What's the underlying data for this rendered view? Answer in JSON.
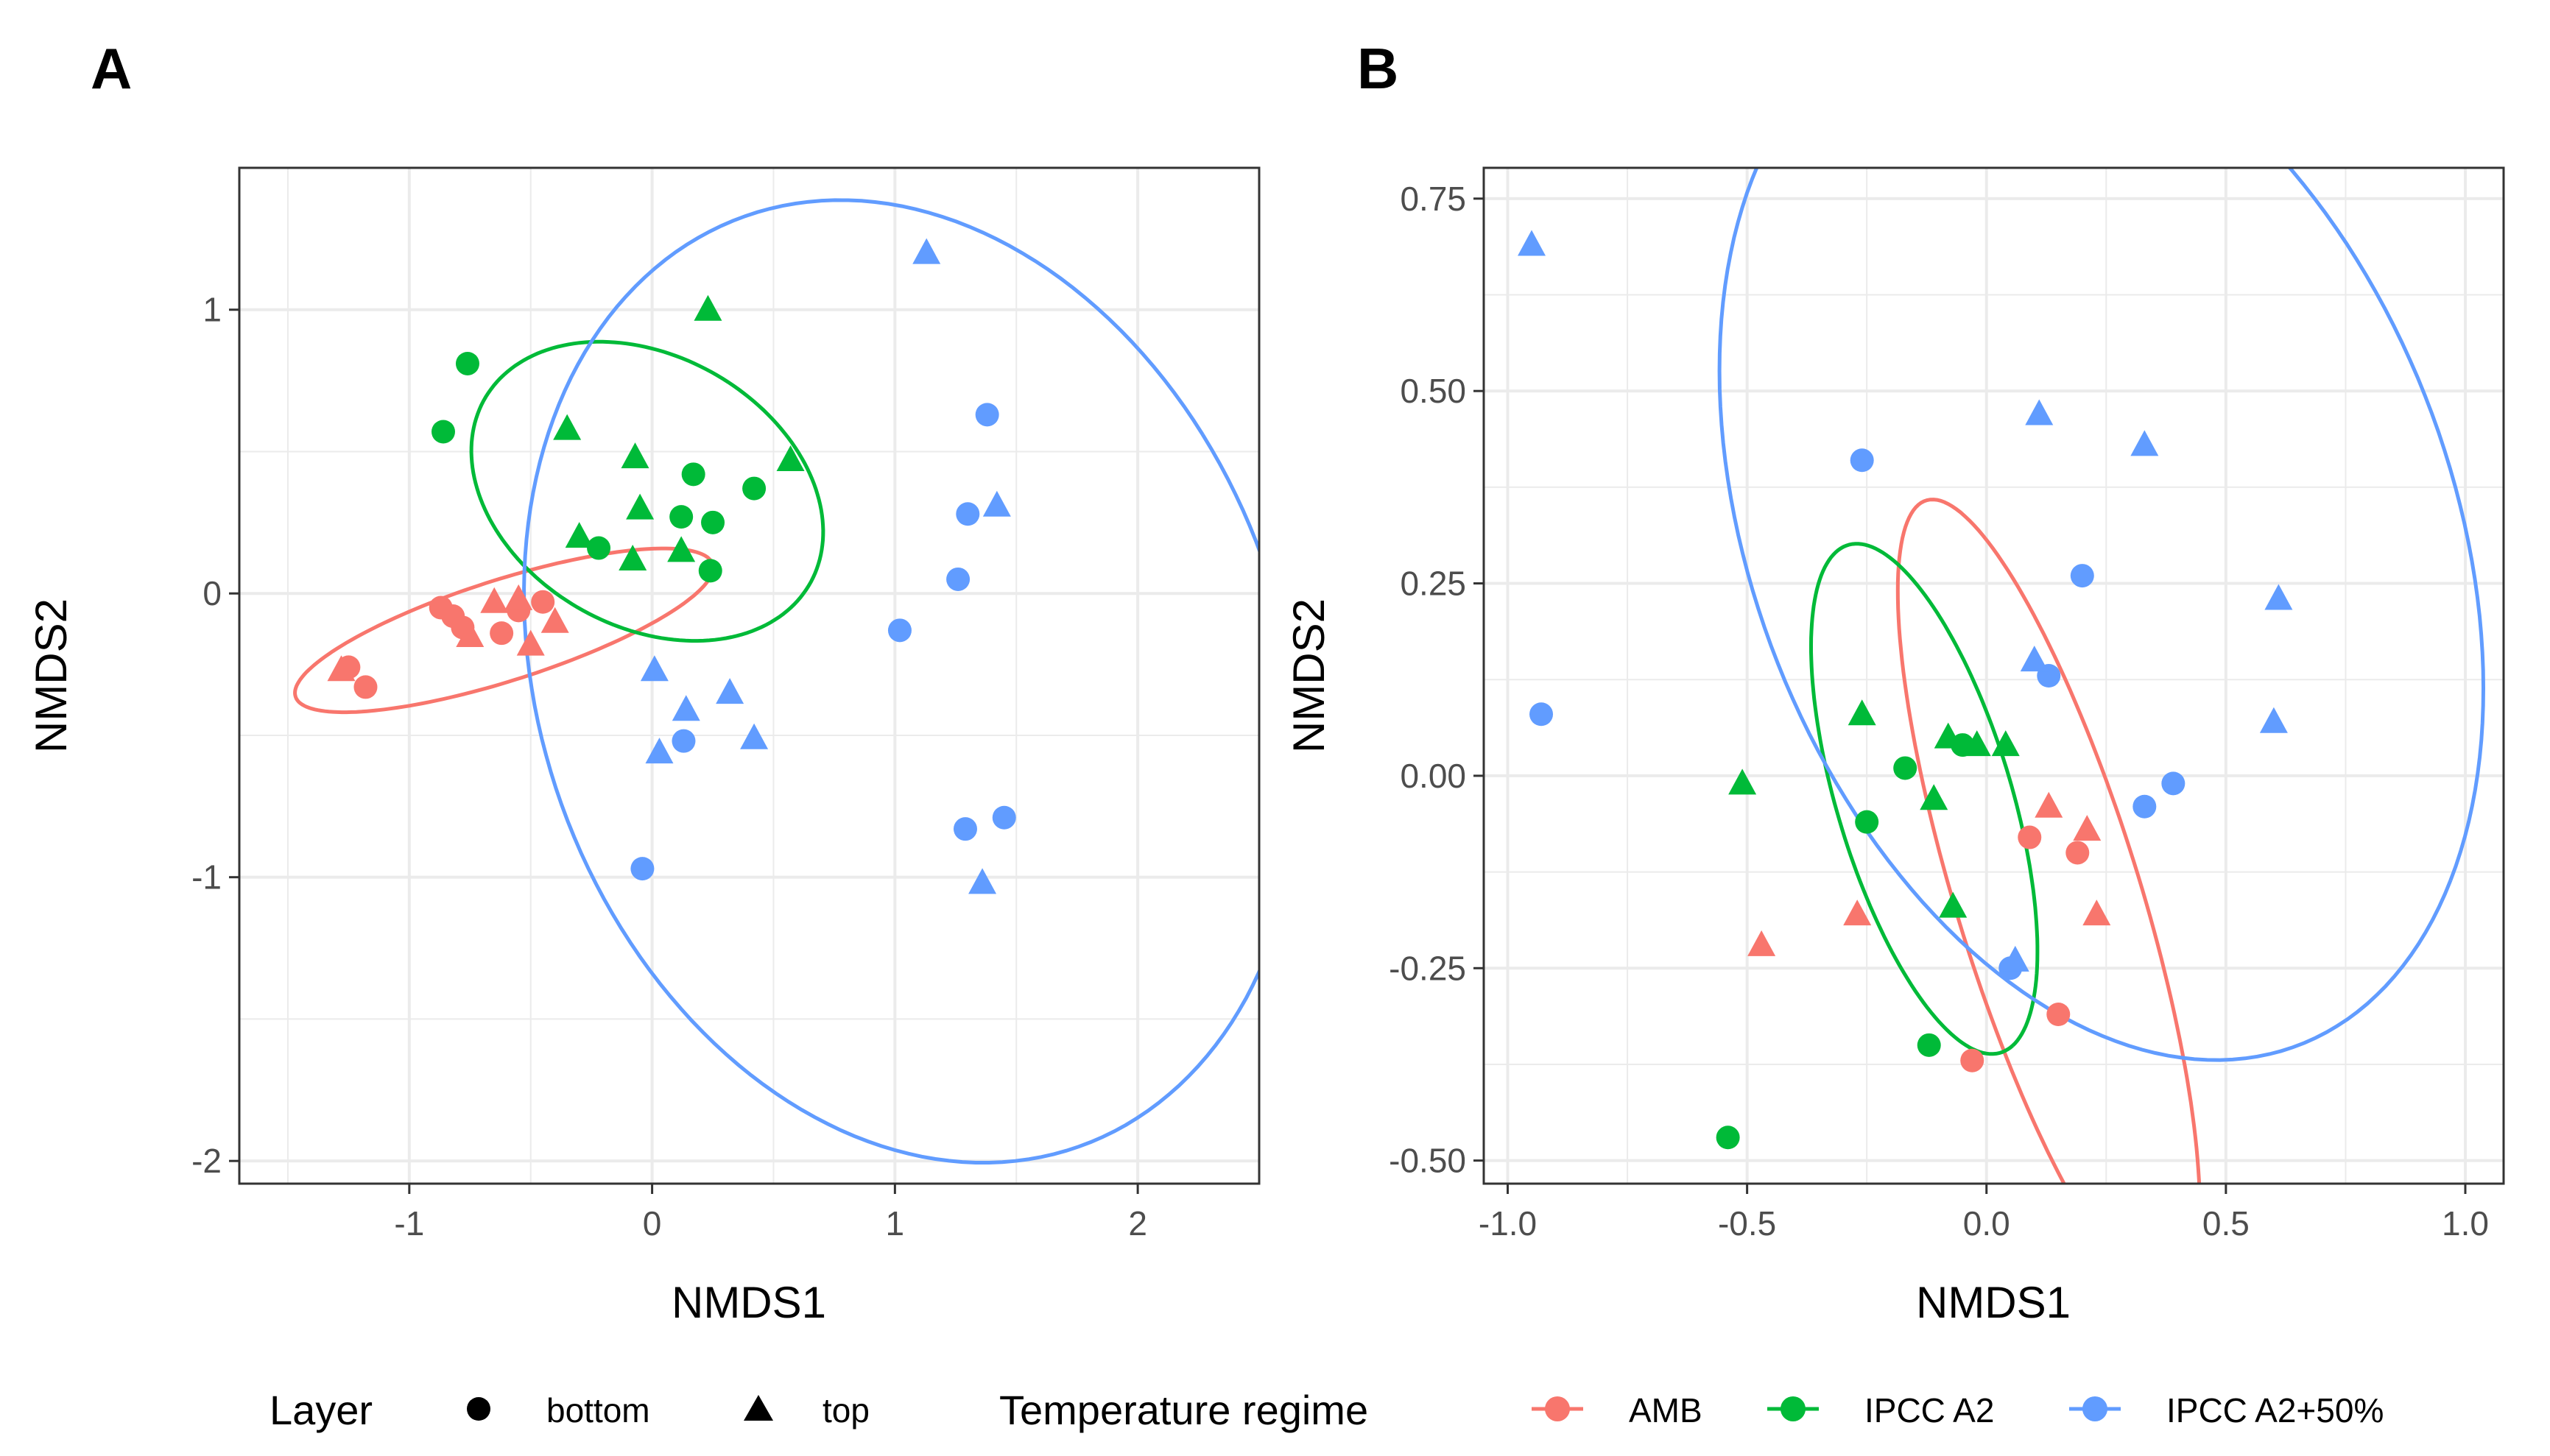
{
  "chart_data": [
    {
      "panel_label": "A",
      "type": "scatter",
      "xlabel": "NMDS1",
      "ylabel": "NMDS2",
      "xlim": [
        -1.7,
        2.5
      ],
      "ylim": [
        -2.08,
        1.5
      ],
      "xticks": [
        -1,
        0,
        1,
        2
      ],
      "xtick_labels": [
        "-1",
        "0",
        "1",
        "2"
      ],
      "yticks": [
        -2,
        -1,
        0,
        1
      ],
      "ytick_labels": [
        "-2",
        "-1",
        "0",
        "1"
      ],
      "grid": true,
      "series": [
        {
          "name": "AMB",
          "points": [
            {
              "x": -0.87,
              "y": -0.05,
              "layer": "bottom"
            },
            {
              "x": -0.82,
              "y": -0.08,
              "layer": "bottom"
            },
            {
              "x": -0.78,
              "y": -0.12,
              "layer": "bottom"
            },
            {
              "x": -0.62,
              "y": -0.14,
              "layer": "bottom"
            },
            {
              "x": -0.55,
              "y": -0.06,
              "layer": "bottom"
            },
            {
              "x": -0.45,
              "y": -0.03,
              "layer": "bottom"
            },
            {
              "x": -1.25,
              "y": -0.26,
              "layer": "bottom"
            },
            {
              "x": -1.18,
              "y": -0.33,
              "layer": "bottom"
            },
            {
              "x": -1.28,
              "y": -0.27,
              "layer": "top"
            },
            {
              "x": -0.75,
              "y": -0.15,
              "layer": "top"
            },
            {
              "x": -0.65,
              "y": -0.03,
              "layer": "top"
            },
            {
              "x": -0.55,
              "y": -0.02,
              "layer": "top"
            },
            {
              "x": -0.5,
              "y": -0.18,
              "layer": "top"
            },
            {
              "x": -0.4,
              "y": -0.1,
              "layer": "top"
            }
          ]
        },
        {
          "name": "IPCC A2",
          "points": [
            {
              "x": -0.86,
              "y": 0.57,
              "layer": "bottom"
            },
            {
              "x": -0.76,
              "y": 0.81,
              "layer": "bottom"
            },
            {
              "x": -0.22,
              "y": 0.16,
              "layer": "bottom"
            },
            {
              "x": 0.12,
              "y": 0.27,
              "layer": "bottom"
            },
            {
              "x": 0.17,
              "y": 0.42,
              "layer": "bottom"
            },
            {
              "x": 0.25,
              "y": 0.25,
              "layer": "bottom"
            },
            {
              "x": 0.24,
              "y": 0.08,
              "layer": "bottom"
            },
            {
              "x": 0.42,
              "y": 0.37,
              "layer": "bottom"
            },
            {
              "x": 0.23,
              "y": 1.0,
              "layer": "top"
            },
            {
              "x": -0.35,
              "y": 0.58,
              "layer": "top"
            },
            {
              "x": -0.07,
              "y": 0.48,
              "layer": "top"
            },
            {
              "x": -0.05,
              "y": 0.3,
              "layer": "top"
            },
            {
              "x": -0.3,
              "y": 0.2,
              "layer": "top"
            },
            {
              "x": -0.08,
              "y": 0.12,
              "layer": "top"
            },
            {
              "x": 0.12,
              "y": 0.15,
              "layer": "top"
            },
            {
              "x": 0.57,
              "y": 0.47,
              "layer": "top"
            }
          ]
        },
        {
          "name": "IPCC A2+50%",
          "points": [
            {
              "x": 1.38,
              "y": 0.63,
              "layer": "bottom"
            },
            {
              "x": 1.3,
              "y": 0.28,
              "layer": "bottom"
            },
            {
              "x": 1.26,
              "y": 0.05,
              "layer": "bottom"
            },
            {
              "x": 1.02,
              "y": -0.13,
              "layer": "bottom"
            },
            {
              "x": 1.29,
              "y": -0.83,
              "layer": "bottom"
            },
            {
              "x": 1.45,
              "y": -0.79,
              "layer": "bottom"
            },
            {
              "x": -0.04,
              "y": -0.97,
              "layer": "bottom"
            },
            {
              "x": 0.13,
              "y": -0.52,
              "layer": "bottom"
            },
            {
              "x": 1.13,
              "y": 1.2,
              "layer": "top"
            },
            {
              "x": 1.42,
              "y": 0.31,
              "layer": "top"
            },
            {
              "x": 1.36,
              "y": -1.02,
              "layer": "top"
            },
            {
              "x": 0.01,
              "y": -0.27,
              "layer": "top"
            },
            {
              "x": 0.14,
              "y": -0.41,
              "layer": "top"
            },
            {
              "x": 0.32,
              "y": -0.35,
              "layer": "top"
            },
            {
              "x": 0.42,
              "y": -0.51,
              "layer": "top"
            },
            {
              "x": 0.03,
              "y": -0.56,
              "layer": "top"
            }
          ]
        }
      ],
      "ellipses": [
        {
          "group": "AMB",
          "cx": -0.61,
          "cy": -0.13,
          "rx": 0.89,
          "ry": 0.18,
          "angle_deg": 15
        },
        {
          "group": "IPCC A2",
          "cx": -0.02,
          "cy": 0.36,
          "rx": 0.75,
          "ry": 0.49,
          "angle_deg": -20
        },
        {
          "group": "IPCC A2+50%",
          "cx": 1.07,
          "cy": -0.31,
          "rx": 1.48,
          "ry": 1.8,
          "angle_deg": 36
        }
      ]
    },
    {
      "panel_label": "B",
      "type": "scatter",
      "xlabel": "NMDS1",
      "ylabel": "NMDS2",
      "xlim": [
        -1.05,
        1.08
      ],
      "ylim": [
        -0.53,
        0.79
      ],
      "xticks": [
        -1.0,
        -0.5,
        0.0,
        0.5,
        1.0
      ],
      "xtick_labels": [
        "-1.0",
        "-0.5",
        "0.0",
        "0.5",
        "1.0"
      ],
      "yticks": [
        -0.5,
        -0.25,
        0.0,
        0.25,
        0.5,
        0.75
      ],
      "ytick_labels": [
        "-0.50",
        "-0.25",
        "0.00",
        "0.25",
        "0.50",
        "0.75"
      ],
      "grid": true,
      "series": [
        {
          "name": "AMB",
          "points": [
            {
              "x": 0.09,
              "y": -0.08,
              "layer": "bottom"
            },
            {
              "x": 0.19,
              "y": -0.1,
              "layer": "bottom"
            },
            {
              "x": 0.15,
              "y": -0.31,
              "layer": "bottom"
            },
            {
              "x": -0.03,
              "y": -0.37,
              "layer": "bottom"
            },
            {
              "x": 0.13,
              "y": -0.04,
              "layer": "top"
            },
            {
              "x": 0.21,
              "y": -0.07,
              "layer": "top"
            },
            {
              "x": 0.23,
              "y": -0.18,
              "layer": "top"
            },
            {
              "x": -0.47,
              "y": -0.22,
              "layer": "top"
            },
            {
              "x": -0.27,
              "y": -0.18,
              "layer": "top"
            }
          ]
        },
        {
          "name": "IPCC A2",
          "points": [
            {
              "x": -0.17,
              "y": 0.01,
              "layer": "bottom"
            },
            {
              "x": -0.25,
              "y": -0.06,
              "layer": "bottom"
            },
            {
              "x": -0.12,
              "y": -0.35,
              "layer": "bottom"
            },
            {
              "x": -0.54,
              "y": -0.47,
              "layer": "bottom"
            },
            {
              "x": -0.05,
              "y": 0.04,
              "layer": "bottom"
            },
            {
              "x": -0.26,
              "y": 0.08,
              "layer": "top"
            },
            {
              "x": -0.08,
              "y": 0.05,
              "layer": "top"
            },
            {
              "x": -0.02,
              "y": 0.04,
              "layer": "top"
            },
            {
              "x": 0.04,
              "y": 0.04,
              "layer": "top"
            },
            {
              "x": -0.11,
              "y": -0.03,
              "layer": "top"
            },
            {
              "x": -0.51,
              "y": -0.01,
              "layer": "top"
            },
            {
              "x": -0.07,
              "y": -0.17,
              "layer": "top"
            }
          ]
        },
        {
          "name": "IPCC A2+50%",
          "points": [
            {
              "x": -0.26,
              "y": 0.41,
              "layer": "bottom"
            },
            {
              "x": 0.2,
              "y": 0.26,
              "layer": "bottom"
            },
            {
              "x": 0.13,
              "y": 0.13,
              "layer": "bottom"
            },
            {
              "x": -0.93,
              "y": 0.08,
              "layer": "bottom"
            },
            {
              "x": 0.33,
              "y": -0.04,
              "layer": "bottom"
            },
            {
              "x": 0.39,
              "y": -0.01,
              "layer": "bottom"
            },
            {
              "x": 0.05,
              "y": -0.25,
              "layer": "bottom"
            },
            {
              "x": -0.95,
              "y": 0.69,
              "layer": "top"
            },
            {
              "x": 0.11,
              "y": 0.47,
              "layer": "top"
            },
            {
              "x": 0.33,
              "y": 0.43,
              "layer": "top"
            },
            {
              "x": 0.61,
              "y": 0.23,
              "layer": "top"
            },
            {
              "x": 0.6,
              "y": 0.07,
              "layer": "top"
            },
            {
              "x": 0.1,
              "y": 0.15,
              "layer": "top"
            },
            {
              "x": 0.06,
              "y": -0.24,
              "layer": "top"
            }
          ]
        }
      ],
      "ellipses": [
        {
          "group": "AMB",
          "cx": 0.13,
          "cy": -0.16,
          "rx": 0.58,
          "ry": 0.18,
          "angle_deg": -62
        },
        {
          "group": "IPCC A2",
          "cx": -0.13,
          "cy": -0.03,
          "rx": 0.37,
          "ry": 0.17,
          "angle_deg": -60
        },
        {
          "group": "IPCC A2+50%",
          "cx": 0.24,
          "cy": 0.32,
          "rx": 0.86,
          "ry": 0.61,
          "angle_deg": -32
        }
      ]
    }
  ],
  "legend": {
    "layer_title": "Layer",
    "layer_items": [
      {
        "label": "bottom",
        "shape": "circle"
      },
      {
        "label": "top",
        "shape": "triangle"
      }
    ],
    "regime_title": "Temperature regime",
    "regime_items": [
      {
        "label": "AMB",
        "color": "#f8766d"
      },
      {
        "label": "IPCC A2",
        "color": "#00ba38"
      },
      {
        "label": "IPCC A2+50%",
        "color": "#619cff"
      }
    ]
  },
  "colors": {
    "AMB": "#f8766d",
    "IPCC A2": "#00ba38",
    "IPCC A2+50%": "#619cff",
    "grid": "#ebebeb",
    "axis_text": "#4d4d4d",
    "panel_border": "#333333"
  }
}
